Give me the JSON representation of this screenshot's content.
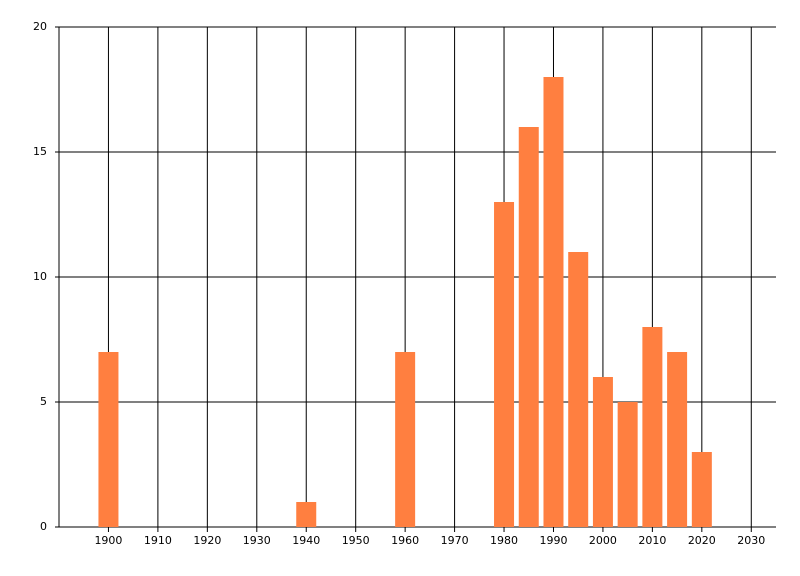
{
  "chart_data": {
    "type": "bar",
    "x": [
      1900,
      1940,
      1960,
      1980,
      1985,
      1990,
      1995,
      2000,
      2005,
      2010,
      2015,
      2020
    ],
    "values": [
      7,
      1,
      7,
      13,
      16,
      18,
      11,
      6,
      5,
      8,
      7,
      3
    ],
    "color": "#ff7f40",
    "xlim": [
      1890,
      2035
    ],
    "xticks": [
      1900,
      1910,
      1920,
      1930,
      1940,
      1950,
      1960,
      1970,
      1980,
      1990,
      2000,
      2010,
      2020,
      2030
    ],
    "ylim": [
      0,
      20
    ],
    "yticks": [
      0,
      5,
      10,
      15,
      20
    ],
    "grid": true
  }
}
